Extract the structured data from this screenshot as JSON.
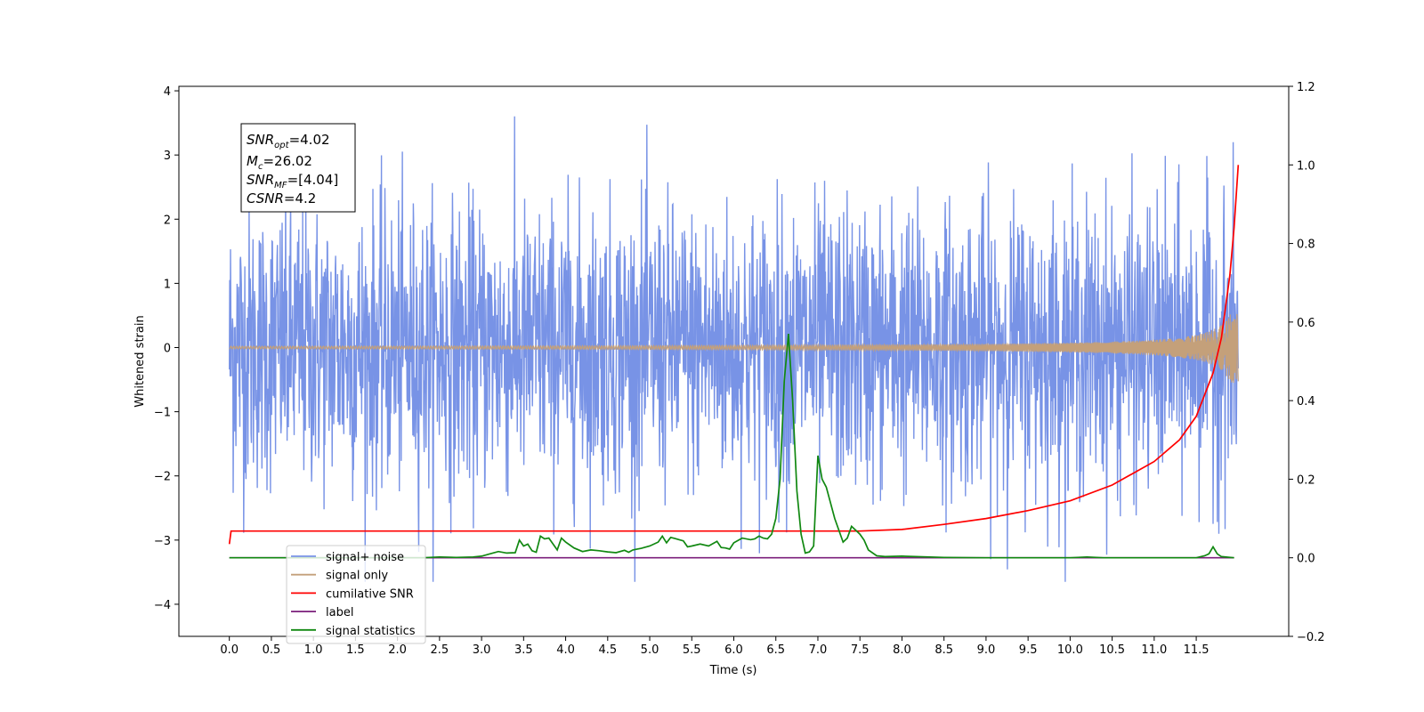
{
  "chart_data": {
    "type": "line",
    "xlabel": "Time (s)",
    "ylabel": "Whitened strain",
    "xlim": [
      -0.6,
      12.6
    ],
    "ylim": [
      -4.5,
      4.07
    ],
    "ylim_right": [
      -0.2,
      1.2
    ],
    "x_ticks": [
      0.0,
      0.5,
      1.0,
      1.5,
      2.0,
      2.5,
      3.0,
      3.5,
      4.0,
      4.5,
      5.0,
      5.5,
      6.0,
      6.5,
      7.0,
      7.5,
      8.0,
      8.5,
      9.0,
      9.5,
      10.0,
      10.5,
      11.0,
      11.5
    ],
    "x_tick_labels": [
      "0.0",
      "0.5",
      "1.0",
      "1.5",
      "2.0",
      "2.5",
      "3.0",
      "3.5",
      "4.0",
      "4.5",
      "5.0",
      "5.5",
      "6.0",
      "6.5",
      "7.0",
      "7.5",
      "8.0",
      "8.5",
      "9.0",
      "9.5",
      "10.0",
      "10.5",
      "11.0",
      "11.5"
    ],
    "y_ticks": [
      -4,
      -3,
      -2,
      -1,
      0,
      1,
      2,
      3,
      4
    ],
    "y_tick_labels": [
      "−4",
      "−3",
      "−2",
      "−1",
      "0",
      "1",
      "2",
      "3",
      "4"
    ],
    "y2_ticks": [
      -0.2,
      0.0,
      0.2,
      0.4,
      0.6,
      0.8,
      1.0,
      1.2
    ],
    "y2_tick_labels": [
      "−0.2",
      "0.0",
      "0.2",
      "0.4",
      "0.6",
      "0.8",
      "1.0",
      "1.2"
    ],
    "grid": false,
    "legend_placement": "lower-left",
    "annotation": {
      "lines": [
        {
          "base": "SNR",
          "sub": "opt",
          "rest": "=4.02"
        },
        {
          "base": "M",
          "sub": "c",
          "rest": "=26.02"
        },
        {
          "base": "SNR",
          "sub": "MF",
          "rest": "=[4.04]"
        },
        {
          "base": "CSNR",
          "sub": "",
          "rest": "=4.2"
        }
      ]
    },
    "series": [
      {
        "name": "signal+ noise",
        "axis": "left",
        "color": "#7893e6",
        "kind": "noise",
        "x_range": [
          0.0,
          12.0
        ],
        "std": 1.1,
        "peak_max": 3.68,
        "peak_min": -3.65
      },
      {
        "name": "signal only",
        "axis": "left",
        "color": "#c4a07a",
        "kind": "chirp",
        "x_range": [
          0.0,
          12.0
        ],
        "final_amplitude": 0.55
      },
      {
        "name": "cumilative SNR",
        "axis": "right",
        "color": "#ff0000",
        "x": [
          0.0,
          0.02,
          1.0,
          2.0,
          3.0,
          4.0,
          5.0,
          6.0,
          7.0,
          7.5,
          8.0,
          8.5,
          9.0,
          9.5,
          10.0,
          10.5,
          11.0,
          11.3,
          11.5,
          11.7,
          11.8,
          11.9,
          11.95,
          12.0
        ],
        "values": [
          0.035,
          0.068,
          0.068,
          0.068,
          0.068,
          0.068,
          0.068,
          0.068,
          0.068,
          0.068,
          0.072,
          0.085,
          0.1,
          0.12,
          0.145,
          0.185,
          0.245,
          0.3,
          0.36,
          0.47,
          0.56,
          0.72,
          0.84,
          1.0
        ]
      },
      {
        "name": "label",
        "axis": "right",
        "color": "#7b1f7b",
        "x": [
          0.0,
          11.95
        ],
        "values": [
          0.0,
          0.0
        ]
      },
      {
        "name": "signal statistics",
        "axis": "right",
        "color": "#118811",
        "x": [
          0.0,
          0.1,
          2.3,
          2.5,
          2.7,
          2.9,
          3.0,
          3.1,
          3.2,
          3.3,
          3.4,
          3.45,
          3.5,
          3.55,
          3.6,
          3.65,
          3.7,
          3.75,
          3.8,
          3.85,
          3.9,
          3.95,
          4.0,
          4.1,
          4.2,
          4.3,
          4.4,
          4.5,
          4.6,
          4.7,
          4.75,
          4.8,
          4.9,
          5.0,
          5.1,
          5.15,
          5.2,
          5.25,
          5.3,
          5.4,
          5.45,
          5.5,
          5.6,
          5.7,
          5.8,
          5.85,
          5.9,
          5.95,
          6.0,
          6.1,
          6.2,
          6.25,
          6.3,
          6.35,
          6.4,
          6.45,
          6.5,
          6.55,
          6.6,
          6.65,
          6.7,
          6.75,
          6.8,
          6.85,
          6.9,
          6.95,
          7.0,
          7.05,
          7.1,
          7.2,
          7.3,
          7.35,
          7.4,
          7.45,
          7.5,
          7.55,
          7.6,
          7.7,
          7.8,
          8.0,
          8.5,
          9.0,
          10.0,
          10.2,
          10.4,
          11.5,
          11.6,
          11.65,
          11.7,
          11.75,
          11.8,
          11.95
        ],
        "values": [
          0.0,
          0.0,
          0.0,
          0.002,
          0.001,
          0.002,
          0.004,
          0.01,
          0.016,
          0.012,
          0.013,
          0.045,
          0.03,
          0.035,
          0.018,
          0.014,
          0.055,
          0.048,
          0.05,
          0.035,
          0.02,
          0.05,
          0.04,
          0.025,
          0.016,
          0.02,
          0.018,
          0.015,
          0.013,
          0.019,
          0.014,
          0.02,
          0.024,
          0.03,
          0.04,
          0.055,
          0.038,
          0.052,
          0.049,
          0.043,
          0.028,
          0.03,
          0.035,
          0.03,
          0.042,
          0.026,
          0.025,
          0.022,
          0.038,
          0.05,
          0.046,
          0.048,
          0.055,
          0.05,
          0.048,
          0.06,
          0.1,
          0.2,
          0.45,
          0.57,
          0.4,
          0.17,
          0.06,
          0.012,
          0.015,
          0.03,
          0.26,
          0.2,
          0.18,
          0.1,
          0.04,
          0.05,
          0.08,
          0.07,
          0.06,
          0.045,
          0.02,
          0.005,
          0.003,
          0.004,
          0.001,
          0.0,
          0.0,
          0.002,
          0.0,
          0.0,
          0.005,
          0.01,
          0.028,
          0.01,
          0.003,
          0.0
        ]
      }
    ]
  }
}
